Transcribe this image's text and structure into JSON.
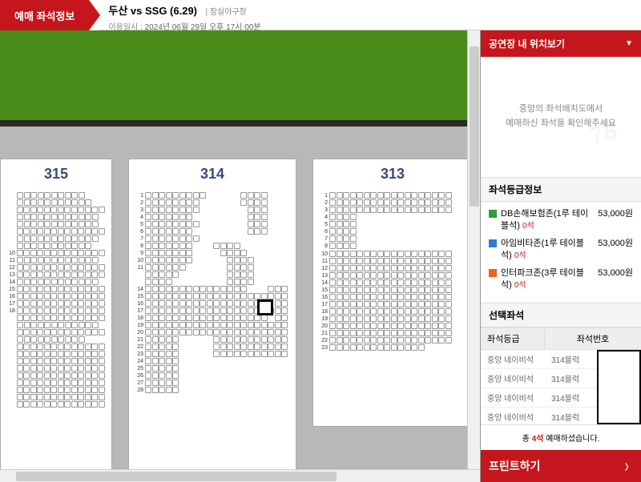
{
  "header": {
    "badge": "예매 좌석정보",
    "title": "두산 vs SSG (6.29)",
    "venue": "잠실야구장",
    "date_label": "이용일시 :",
    "date_value": "2024년 06월 29일 오후 17시 00분"
  },
  "sections": {
    "s315": {
      "title": "315"
    },
    "s314": {
      "title": "314"
    },
    "s313": {
      "title": "313"
    }
  },
  "sidebar": {
    "location_header": "공연장 내 위치보기",
    "minimap_text1": "중앙의 좌석배치도에서",
    "minimap_text2": "예매하신 좌석을 확인해주세요",
    "grade_header": "좌석등급정보",
    "grades": [
      {
        "color": "#2e9d3e",
        "name": "DB손해보험존(1루 테이블석)",
        "avail": "0석",
        "price": "53,000원"
      },
      {
        "color": "#2a7fd4",
        "name": "아임비타존(1루 테이블석)",
        "avail": "0석",
        "price": "53,000원"
      },
      {
        "color": "#e8651e",
        "name": "인터파크존(3루 테이블석)",
        "avail": "0석",
        "price": "53,000원"
      }
    ],
    "selected_header": "선택좌석",
    "table_headers": {
      "grade": "좌석등급",
      "number": "좌석번호"
    },
    "selected_seats": [
      {
        "grade": "중앙 네이비석",
        "block": "314블럭"
      },
      {
        "grade": "중앙 네이비석",
        "block": "314블럭"
      },
      {
        "grade": "중앙 네이비석",
        "block": "314블럭"
      },
      {
        "grade": "중앙 네이비석",
        "block": "314블럭"
      }
    ],
    "summary_prefix": "총 ",
    "summary_count": "4석",
    "summary_suffix": " 예매하셨습니다.",
    "print_button": "프린트하기"
  },
  "seat_layout": {
    "s315": {
      "rows": [
        {
          "n": "",
          "c": 10,
          "g": 0
        },
        {
          "n": "",
          "c": 11,
          "g": 0
        },
        {
          "n": "",
          "c": 13,
          "g": 0
        },
        {
          "n": "",
          "c": 12,
          "g": 0
        },
        {
          "n": "",
          "c": 12,
          "g": 0
        },
        {
          "n": "",
          "c": 13,
          "g": 0
        },
        {
          "n": "",
          "c": 12,
          "g": 0
        },
        {
          "n": "",
          "c": 11,
          "g": 0
        },
        {
          "n": "10",
          "c": 13,
          "g": 0
        },
        {
          "n": "11",
          "c": 12,
          "g": 0
        },
        {
          "n": "12",
          "c": 13,
          "g": 0
        },
        {
          "n": "13",
          "c": 13,
          "g": 0
        },
        {
          "n": "14",
          "c": 12,
          "g": 0
        },
        {
          "n": "15",
          "c": 13,
          "g": 0
        },
        {
          "n": "16",
          "c": 13,
          "g": 0
        },
        {
          "n": "17",
          "c": 13,
          "g": 0
        },
        {
          "n": "18",
          "c": 13,
          "g": 0
        },
        {
          "n": "",
          "c": 13,
          "g": 0
        },
        {
          "n": "",
          "c": 12,
          "g": 0
        },
        {
          "n": "",
          "c": 13,
          "g": 0
        },
        {
          "n": "",
          "c": 10,
          "g": 0
        },
        {
          "n": "",
          "c": 13,
          "g": 0
        },
        {
          "n": "",
          "c": 13,
          "g": 0
        },
        {
          "n": "",
          "c": 13,
          "g": 0
        },
        {
          "n": "",
          "c": 13,
          "g": 0
        },
        {
          "n": "",
          "c": 13,
          "g": 0
        },
        {
          "n": "",
          "c": 13,
          "g": 0
        },
        {
          "n": "",
          "c": 13,
          "g": 0
        },
        {
          "n": "",
          "c": 13,
          "g": 0
        },
        {
          "n": "",
          "c": 13,
          "g": 0
        }
      ]
    },
    "s314": {
      "rows": [
        {
          "n": "1",
          "c": 9,
          "g": 5,
          "c2": 4
        },
        {
          "n": "2",
          "c": 8,
          "g": 6,
          "c2": 4
        },
        {
          "n": "3",
          "c": 8,
          "g": 7,
          "c2": 3
        },
        {
          "n": "4",
          "c": 7,
          "g": 8,
          "c2": 3
        },
        {
          "n": "5",
          "c": 8,
          "g": 7,
          "c2": 3
        },
        {
          "n": "6",
          "c": 7,
          "g": 8,
          "c2": 3
        },
        {
          "n": "7",
          "c": 8,
          "g": 0
        },
        {
          "n": "8",
          "c": 7,
          "g": 3,
          "c2": 4
        },
        {
          "n": "9",
          "c": 7,
          "g": 4,
          "c2": 4
        },
        {
          "n": "10",
          "c": 7,
          "g": 5,
          "c2": 4
        },
        {
          "n": "11",
          "c": 6,
          "g": 6,
          "c2": 4
        },
        {
          "n": "",
          "c": 5,
          "g": 7,
          "c2": 4
        },
        {
          "n": "",
          "c": 4,
          "g": 8,
          "c2": 4
        },
        {
          "n": "14",
          "c": 15,
          "g": 3,
          "c2": 3
        },
        {
          "n": "15",
          "c": 19,
          "g": 0,
          "c2": 2
        },
        {
          "n": "16",
          "c": 18,
          "g": 1,
          "c2": 2
        },
        {
          "n": "17",
          "c": 19,
          "g": 0,
          "c2": 2
        },
        {
          "n": "18",
          "c": 18,
          "g": 1,
          "c2": 2
        },
        {
          "n": "19",
          "c": 19,
          "g": 0,
          "c2": 2
        },
        {
          "n": "20",
          "c": 20,
          "g": 0,
          "c2": 1
        },
        {
          "n": "21",
          "c": 5,
          "g": 5,
          "c2": 11
        },
        {
          "n": "22",
          "c": 5,
          "g": 5,
          "c2": 11
        },
        {
          "n": "23",
          "c": 5,
          "g": 5,
          "c2": 11
        },
        {
          "n": "24",
          "c": 5,
          "g": 0
        },
        {
          "n": "25",
          "c": 5,
          "g": 0
        },
        {
          "n": "26",
          "c": 5,
          "g": 0
        },
        {
          "n": "27",
          "c": 5,
          "g": 0
        },
        {
          "n": "28",
          "c": 5,
          "g": 0
        }
      ]
    },
    "s313": {
      "rows": [
        {
          "n": "1",
          "c": 18
        },
        {
          "n": "2",
          "c": 18
        },
        {
          "n": "3",
          "c": 18
        },
        {
          "n": "4",
          "c": 4
        },
        {
          "n": "5",
          "c": 4
        },
        {
          "n": "6",
          "c": 4
        },
        {
          "n": "7",
          "c": 4
        },
        {
          "n": "8",
          "c": 4
        },
        {
          "n": "",
          "c": 0
        },
        {
          "n": "10",
          "c": 18
        },
        {
          "n": "11",
          "c": 18
        },
        {
          "n": "12",
          "c": 18
        },
        {
          "n": "13",
          "c": 18
        },
        {
          "n": "14",
          "c": 18
        },
        {
          "n": "15",
          "c": 18
        },
        {
          "n": "16",
          "c": 18
        },
        {
          "n": "17",
          "c": 18
        },
        {
          "n": "18",
          "c": 18
        },
        {
          "n": "19",
          "c": 18
        },
        {
          "n": "20",
          "c": 18
        },
        {
          "n": "21",
          "c": 18
        },
        {
          "n": "22",
          "c": 18
        },
        {
          "n": "23",
          "c": 14
        }
      ]
    }
  }
}
